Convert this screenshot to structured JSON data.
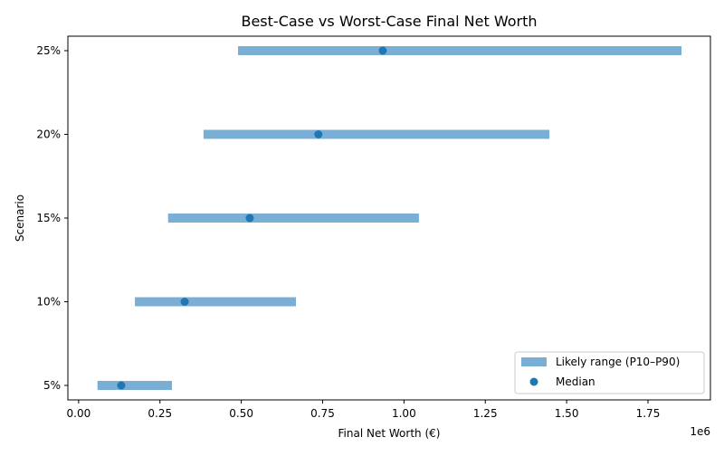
{
  "chart_data": {
    "type": "range-dot",
    "title": "Best-Case vs Worst-Case Final Net Worth",
    "xlabel": "Final Net Worth (€)",
    "ylabel": "Scenario",
    "x_offset_label": "1e6",
    "xlim": [
      -0.033,
      1.942
    ],
    "x_unit_multiplier": 1000000,
    "x_ticks": [
      0,
      0.25,
      0.5,
      0.75,
      1.0,
      1.25,
      1.5,
      1.75
    ],
    "x_tick_labels": [
      "0.00",
      "0.25",
      "0.50",
      "0.75",
      "1.00",
      "1.25",
      "1.50",
      "1.75"
    ],
    "categories": [
      "5%",
      "10%",
      "15%",
      "20%",
      "25%"
    ],
    "series": [
      {
        "name": "Likely range (P10–P90)",
        "type": "range",
        "color": "#7aaed4",
        "low": [
          0.058,
          0.173,
          0.275,
          0.384,
          0.49
        ],
        "high": [
          0.287,
          0.668,
          1.046,
          1.447,
          1.853
        ]
      },
      {
        "name": "Median",
        "type": "scatter",
        "color": "#1f77b4",
        "values": [
          0.131,
          0.326,
          0.526,
          0.737,
          0.935
        ]
      }
    ],
    "grid": false,
    "legend_position": "lower-right"
  }
}
